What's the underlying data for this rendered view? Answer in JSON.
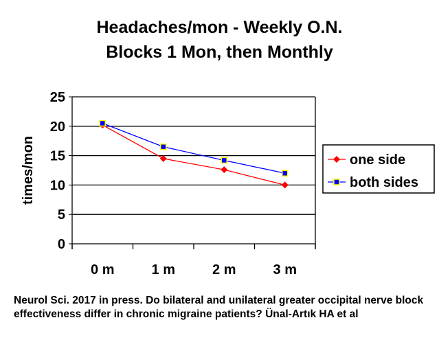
{
  "chart_data": {
    "type": "line",
    "title": [
      "Headaches/mon - Weekly O.N.",
      "Blocks 1 Mon, then Monthly"
    ],
    "xlabel": "",
    "ylabel": "times/mon",
    "categories": [
      "0 m",
      "1 m",
      "2 m",
      "3 m"
    ],
    "ylim": [
      0,
      25
    ],
    "yticks": [
      0,
      5,
      10,
      15,
      20,
      25
    ],
    "grid": true,
    "legend": "right",
    "series": [
      {
        "name": "one side",
        "values": [
          20.2,
          14.5,
          12.6,
          10
        ],
        "color": "#ff0000",
        "marker": "diamond"
      },
      {
        "name": "both sides",
        "values": [
          20.5,
          16.5,
          14.2,
          12
        ],
        "color": "#0000ff",
        "marker": "square"
      }
    ]
  },
  "source": "Neurol Sci. 2017 in press. Do bilateral and unilateral greater occipital nerve block effectiveness differ in chronic migraine patients? Ünal-Artık HA et al"
}
